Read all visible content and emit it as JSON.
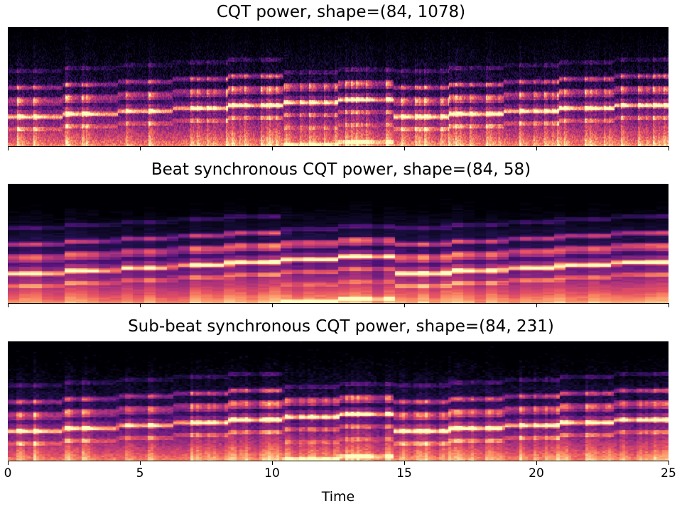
{
  "chart_data": [
    {
      "type": "heatmap",
      "title": "CQT power, shape=(84, 1078)",
      "shape": [
        84,
        1078
      ],
      "xlim": [
        0,
        25
      ],
      "xticks": [
        0,
        5,
        10,
        15,
        20,
        25
      ],
      "colormap": "magma",
      "xlabel": ""
    },
    {
      "type": "heatmap",
      "title": "Beat synchronous CQT power, shape=(84, 58)",
      "shape": [
        84,
        58
      ],
      "xlim": [
        0,
        25
      ],
      "xticks": [
        0,
        5,
        10,
        15,
        20,
        25
      ],
      "colormap": "magma",
      "xlabel": ""
    },
    {
      "type": "heatmap",
      "title": "Sub-beat synchronous CQT power, shape=(84, 231)",
      "shape": [
        84,
        231
      ],
      "xlim": [
        0,
        25
      ],
      "xticks": [
        0,
        5,
        10,
        15,
        20,
        25
      ],
      "xtick_labels": [
        "0",
        "5",
        "10",
        "15",
        "20",
        "25"
      ],
      "colormap": "magma",
      "xlabel": "Time"
    }
  ]
}
